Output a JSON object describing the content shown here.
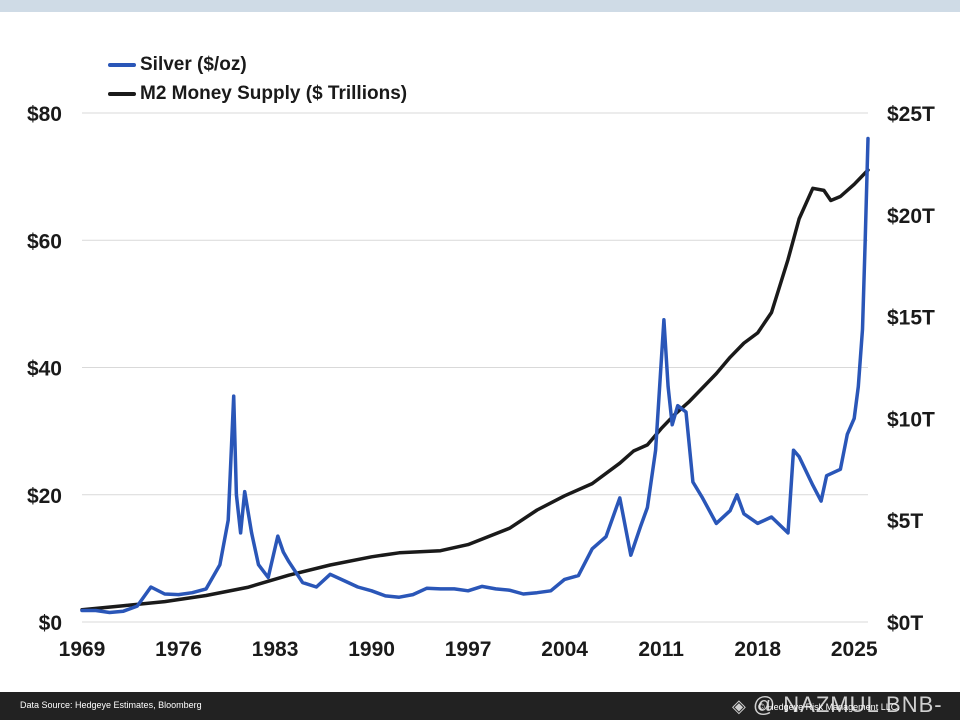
{
  "chart_data": {
    "type": "line",
    "legend_position": "top-left",
    "grid": true,
    "x_ticks": [
      "1969",
      "1976",
      "1983",
      "1990",
      "1997",
      "2004",
      "2011",
      "2018",
      "2025"
    ],
    "xlim": [
      1969,
      2026
    ],
    "y_left": {
      "ticks": [
        "$0",
        "$20",
        "$40",
        "$60",
        "$80"
      ],
      "lim": [
        0,
        80
      ]
    },
    "y_right": {
      "ticks": [
        "$0T",
        "$5T",
        "$10T",
        "$15T",
        "$20T",
        "$25T"
      ],
      "lim": [
        0,
        25
      ]
    },
    "series": [
      {
        "name": "Silver ($/oz)",
        "axis": "left",
        "color": "#2a56b8",
        "points": [
          [
            1969,
            1.8
          ],
          [
            1970,
            1.8
          ],
          [
            1971,
            1.5
          ],
          [
            1972,
            1.7
          ],
          [
            1973,
            2.5
          ],
          [
            1974,
            5.5
          ],
          [
            1975,
            4.4
          ],
          [
            1976,
            4.3
          ],
          [
            1977,
            4.6
          ],
          [
            1978,
            5.2
          ],
          [
            1979,
            9.0
          ],
          [
            1979.6,
            16
          ],
          [
            1980.0,
            35.5
          ],
          [
            1980.2,
            20
          ],
          [
            1980.5,
            14
          ],
          [
            1980.8,
            20.5
          ],
          [
            1981.3,
            14
          ],
          [
            1981.8,
            9
          ],
          [
            1982.5,
            7
          ],
          [
            1983.2,
            13.5
          ],
          [
            1983.6,
            11
          ],
          [
            1984,
            9.5
          ],
          [
            1985,
            6.2
          ],
          [
            1986,
            5.5
          ],
          [
            1987,
            7.5
          ],
          [
            1988,
            6.5
          ],
          [
            1989,
            5.5
          ],
          [
            1990,
            4.9
          ],
          [
            1991,
            4.1
          ],
          [
            1992,
            3.9
          ],
          [
            1993,
            4.3
          ],
          [
            1994,
            5.3
          ],
          [
            1995,
            5.2
          ],
          [
            1996,
            5.2
          ],
          [
            1997,
            4.9
          ],
          [
            1998,
            5.6
          ],
          [
            1999,
            5.2
          ],
          [
            2000,
            5.0
          ],
          [
            2001,
            4.4
          ],
          [
            2002,
            4.6
          ],
          [
            2003,
            4.9
          ],
          [
            2004,
            6.7
          ],
          [
            2005,
            7.3
          ],
          [
            2006,
            11.5
          ],
          [
            2007,
            13.4
          ],
          [
            2008,
            19.5
          ],
          [
            2008.8,
            10.5
          ],
          [
            2009.5,
            15
          ],
          [
            2010,
            18
          ],
          [
            2010.6,
            27
          ],
          [
            2011.2,
            47.5
          ],
          [
            2011.5,
            37
          ],
          [
            2011.8,
            31
          ],
          [
            2012.2,
            34
          ],
          [
            2012.8,
            33
          ],
          [
            2013.3,
            22
          ],
          [
            2014,
            19.5
          ],
          [
            2015,
            15.5
          ],
          [
            2016,
            17.5
          ],
          [
            2016.5,
            20
          ],
          [
            2017,
            17
          ],
          [
            2018,
            15.5
          ],
          [
            2019,
            16.5
          ],
          [
            2020.2,
            14
          ],
          [
            2020.6,
            27
          ],
          [
            2021,
            26
          ],
          [
            2022,
            21.5
          ],
          [
            2022.6,
            19
          ],
          [
            2023,
            23
          ],
          [
            2024,
            24
          ],
          [
            2024.5,
            29.5
          ],
          [
            2025,
            32
          ],
          [
            2025.3,
            37
          ],
          [
            2025.6,
            46
          ],
          [
            2025.8,
            60
          ],
          [
            2026.0,
            76
          ]
        ]
      },
      {
        "name": "M2 Money Supply ($ Trillions)",
        "axis": "right",
        "color": "#1a1a1a",
        "points": [
          [
            1969,
            0.6
          ],
          [
            1972,
            0.8
          ],
          [
            1975,
            1.0
          ],
          [
            1978,
            1.3
          ],
          [
            1981,
            1.7
          ],
          [
            1984,
            2.3
          ],
          [
            1987,
            2.8
          ],
          [
            1990,
            3.2
          ],
          [
            1992,
            3.4
          ],
          [
            1995,
            3.5
          ],
          [
            1997,
            3.8
          ],
          [
            2000,
            4.6
          ],
          [
            2002,
            5.5
          ],
          [
            2004,
            6.2
          ],
          [
            2006,
            6.8
          ],
          [
            2008,
            7.8
          ],
          [
            2009,
            8.4
          ],
          [
            2010,
            8.7
          ],
          [
            2011,
            9.5
          ],
          [
            2012,
            10.2
          ],
          [
            2013,
            10.8
          ],
          [
            2014,
            11.5
          ],
          [
            2015,
            12.2
          ],
          [
            2016,
            13.0
          ],
          [
            2017,
            13.7
          ],
          [
            2018,
            14.2
          ],
          [
            2019,
            15.2
          ],
          [
            2020.2,
            17.8
          ],
          [
            2021,
            19.8
          ],
          [
            2022,
            21.3
          ],
          [
            2022.8,
            21.2
          ],
          [
            2023.3,
            20.7
          ],
          [
            2024,
            20.9
          ],
          [
            2025,
            21.5
          ],
          [
            2026,
            22.2
          ]
        ]
      }
    ]
  },
  "footer": {
    "source": "Data Source: Hedgeye Estimates, Bloomberg",
    "watermark": "@ NAZMUL BNB-",
    "copyright": "© Hedgeye Risk Management LLC."
  }
}
